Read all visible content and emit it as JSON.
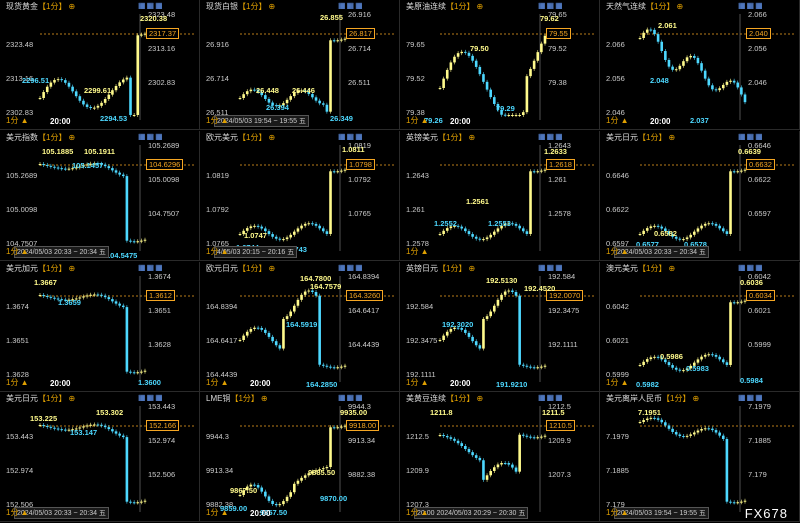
{
  "common": {
    "timeframe": "1分",
    "tf_tag": "【1分】",
    "gear": "⊕",
    "time_label": "20:00",
    "icons": "▦▦▦",
    "colors": {
      "up": "#fffa8c",
      "down": "#4dd8ff",
      "ref": "#f5a623"
    }
  },
  "watermark": "FX678",
  "panels": [
    {
      "name": "gold",
      "title": "现货黄金",
      "r": [
        2323.48,
        2313.16,
        2302.83
      ],
      "l": [
        2323.48,
        2313.16,
        2302.83
      ],
      "last": "2317.37",
      "ann": [
        {
          "t": "2320.38",
          "k": "hi",
          "x": 140,
          "y": 14
        },
        {
          "t": "2299.61",
          "k": "hi",
          "x": 84,
          "y": 86
        },
        {
          "t": "2296.51",
          "k": "lo",
          "x": 22,
          "y": 76
        },
        {
          "t": "2294.53",
          "k": "lo",
          "x": 100,
          "y": 114
        }
      ],
      "time": true,
      "ts": "",
      "series": "gold"
    },
    {
      "name": "silver",
      "title": "现货白银",
      "r": [
        26.916,
        26.714,
        26.511
      ],
      "l": [
        26.916,
        26.714,
        26.511
      ],
      "last": "26.817",
      "ann": [
        {
          "t": "26.855",
          "k": "hi",
          "x": 120,
          "y": 13
        },
        {
          "t": "26.448",
          "k": "hi",
          "x": 56,
          "y": 86
        },
        {
          "t": "26.446",
          "k": "hi",
          "x": 92,
          "y": 86
        },
        {
          "t": "26.394",
          "k": "lo",
          "x": 66,
          "y": 103
        },
        {
          "t": "26.349",
          "k": "lo",
          "x": 130,
          "y": 114
        }
      ],
      "time": false,
      "ts": "2024/05/03 19:54 ~ 19:55 五",
      "series": "flat"
    },
    {
      "name": "oil",
      "title": "美原油连续",
      "r": [
        79.65,
        79.52,
        79.38
      ],
      "l": [
        79.65,
        79.52,
        79.38
      ],
      "last": "79.55",
      "ann": [
        {
          "t": "79.62",
          "k": "hi",
          "x": 140,
          "y": 14
        },
        {
          "t": "79.50",
          "k": "hi",
          "x": 70,
          "y": 44
        },
        {
          "t": "79.29",
          "k": "lo",
          "x": 96,
          "y": 104
        },
        {
          "t": "79.26",
          "k": "lo",
          "x": 24,
          "y": 116
        }
      ],
      "time": true,
      "ts": "",
      "series": "oil"
    },
    {
      "name": "natgas",
      "title": "天然气连续",
      "r": [
        2.066,
        2.056,
        2.046
      ],
      "l": [
        2.066,
        2.056,
        2.046
      ],
      "last": "2.040",
      "ann": [
        {
          "t": "2.061",
          "k": "hi",
          "x": 58,
          "y": 21
        },
        {
          "t": "2.048",
          "k": "lo",
          "x": 50,
          "y": 76
        },
        {
          "t": "2.037",
          "k": "lo",
          "x": 90,
          "y": 116
        }
      ],
      "time": true,
      "ts": "",
      "series": "gas"
    },
    {
      "name": "dxy",
      "title": "美元指数",
      "r": [
        105.2689,
        105.0098,
        104.7507
      ],
      "l": [
        105.2689,
        105.0098,
        104.7507
      ],
      "last": "104.6296",
      "ann": [
        {
          "t": "105.1885",
          "k": "hi",
          "x": 42,
          "y": 16
        },
        {
          "t": "105.1911",
          "k": "hi",
          "x": 84,
          "y": 16
        },
        {
          "t": "105.1457",
          "k": "lo",
          "x": 72,
          "y": 30
        },
        {
          "t": "104.5475",
          "k": "lo",
          "x": 106,
          "y": 120
        }
      ],
      "time": false,
      "ts": "2024/05/03 20:33 ~ 20:34 五",
      "series": "dropDown"
    },
    {
      "name": "eurusd",
      "title": "欧元美元",
      "r": [
        1.0819,
        1.0792,
        1.0765
      ],
      "l": [
        1.0819,
        1.0792,
        1.0765
      ],
      "last": "1.0798",
      "ann": [
        {
          "t": "1.0811",
          "k": "hi",
          "x": 142,
          "y": 14
        },
        {
          "t": "1.0747",
          "k": "hi",
          "x": 44,
          "y": 100
        },
        {
          "t": "1.0744",
          "k": "lo",
          "x": 36,
          "y": 112
        },
        {
          "t": "1.0743",
          "k": "lo",
          "x": 84,
          "y": 114
        }
      ],
      "time": false,
      "ts": "4/05/03 20:15 ~ 20:16 五",
      "series": "jumpUp"
    },
    {
      "name": "gbpusd",
      "title": "英镑美元",
      "r": [
        1.2643,
        1.261,
        1.2578
      ],
      "l": [
        1.2643,
        1.261,
        1.2578
      ],
      "last": "1.2618",
      "ann": [
        {
          "t": "1.2633",
          "k": "hi",
          "x": 144,
          "y": 16
        },
        {
          "t": "1.2561",
          "k": "hi",
          "x": 66,
          "y": 66
        },
        {
          "t": "1.2552",
          "k": "lo",
          "x": 34,
          "y": 88
        },
        {
          "t": "1.2553",
          "k": "lo",
          "x": 88,
          "y": 88
        }
      ],
      "time": false,
      "ts": "",
      "series": "jumpUp"
    },
    {
      "name": "usdjpy",
      "title": "美元日元",
      "r": [
        0.6646,
        0.6622,
        0.6597
      ],
      "l": [
        0.6646,
        0.6622,
        0.6597
      ],
      "last": "0.6632",
      "ann": [
        {
          "t": "0.6639",
          "k": "hi",
          "x": 138,
          "y": 16
        },
        {
          "t": "0.6582",
          "k": "hi",
          "x": 54,
          "y": 98
        },
        {
          "t": "0.6577",
          "k": "lo",
          "x": 36,
          "y": 109
        },
        {
          "t": "0.6578",
          "k": "lo",
          "x": 84,
          "y": 109
        }
      ],
      "time": false,
      "ts": "2024/05/03 20:33 ~ 20:34 五",
      "series": "jumpUp"
    },
    {
      "name": "gbpusd2",
      "title": "美元加元",
      "r": [
        1.3674,
        1.3651,
        1.3628
      ],
      "l": [
        1.3674,
        1.3651,
        1.3628
      ],
      "last": "1.3612",
      "ann": [
        {
          "t": "1.3667",
          "k": "hi",
          "x": 34,
          "y": 16
        },
        {
          "t": "1.3659",
          "k": "lo",
          "x": 58,
          "y": 36
        },
        {
          "t": "1.3600",
          "k": "lo",
          "x": 138,
          "y": 116
        }
      ],
      "time": true,
      "ts": "",
      "series": "dropDown"
    },
    {
      "name": "eurjpy",
      "title": "欧元日元",
      "r": [
        164.8394,
        164.6417,
        164.4439
      ],
      "l": [
        164.8394,
        164.6417,
        164.4439
      ],
      "last": "164.3260",
      "ann": [
        {
          "t": "164.7800",
          "k": "hi",
          "x": 100,
          "y": 12
        },
        {
          "t": "164.7579",
          "k": "hi",
          "x": 110,
          "y": 20
        },
        {
          "t": "164.5919",
          "k": "lo",
          "x": 86,
          "y": 58
        },
        {
          "t": "164.2850",
          "k": "lo",
          "x": 106,
          "y": 118
        }
      ],
      "time": true,
      "ts": "",
      "series": "eurjpy"
    },
    {
      "name": "gbpjpy",
      "title": "英镑日元",
      "r": [
        192.584,
        192.3475,
        192.1111
      ],
      "l": [
        192.584,
        192.3475,
        192.1111
      ],
      "last": "192.0070",
      "ann": [
        {
          "t": "192.5130",
          "k": "hi",
          "x": 86,
          "y": 14
        },
        {
          "t": "192.4520",
          "k": "hi",
          "x": 124,
          "y": 22
        },
        {
          "t": "192.3020",
          "k": "lo",
          "x": 42,
          "y": 58
        },
        {
          "t": "191.9210",
          "k": "lo",
          "x": 96,
          "y": 118
        }
      ],
      "time": true,
      "ts": "",
      "series": "eurjpy"
    },
    {
      "name": "audusd",
      "title": "澳元美元",
      "r": [
        0.6042,
        0.6021,
        0.5999
      ],
      "l": [
        0.6042,
        0.6021,
        0.5999
      ],
      "last": "0.6034",
      "ann": [
        {
          "t": "0.6036",
          "k": "hi",
          "x": 140,
          "y": 16
        },
        {
          "t": "0.5986",
          "k": "hi",
          "x": 60,
          "y": 90
        },
        {
          "t": "0.5982",
          "k": "lo",
          "x": 36,
          "y": 118
        },
        {
          "t": "0.5983",
          "k": "lo",
          "x": 86,
          "y": 102
        },
        {
          "t": "0.5984",
          "k": "lo",
          "x": 140,
          "y": 114
        }
      ],
      "time": false,
      "ts": "",
      "series": "jumpUp"
    },
    {
      "name": "usdjpy2",
      "title": "美元日元",
      "r": [
        153.443,
        152.974,
        152.506
      ],
      "l": [
        153.443,
        152.974,
        152.506
      ],
      "last": "152.166",
      "ann": [
        {
          "t": "153.225",
          "k": "hi",
          "x": 30,
          "y": 22
        },
        {
          "t": "153.302",
          "k": "hi",
          "x": 96,
          "y": 16
        },
        {
          "t": "153.147",
          "k": "lo",
          "x": 70,
          "y": 36
        }
      ],
      "time": false,
      "ts": "2024/05/03 20:33 ~ 20:34 五",
      "series": "dropDown"
    },
    {
      "name": "lme",
      "title": "LME铜",
      "r": [
        9944.3,
        9913.34,
        9882.38
      ],
      "l": [
        9944.3,
        9913.34,
        9882.38
      ],
      "last": "9918.00",
      "ann": [
        {
          "t": "9935.00",
          "k": "hi",
          "x": 140,
          "y": 16
        },
        {
          "t": "9885.50",
          "k": "hi",
          "x": 108,
          "y": 76
        },
        {
          "t": "9867.50",
          "k": "hi",
          "x": 30,
          "y": 94
        },
        {
          "t": "9870.00",
          "k": "lo",
          "x": 120,
          "y": 102
        },
        {
          "t": "9859.00",
          "k": "lo",
          "x": 20,
          "y": 112
        },
        {
          "t": "9857.50",
          "k": "lo",
          "x": 60,
          "y": 116
        }
      ],
      "time": true,
      "ts": "",
      "series": "lme"
    },
    {
      "name": "soy",
      "title": "美黄豆连续",
      "r": [
        1212.5,
        1209.9,
        1207.3
      ],
      "l": [
        1212.5,
        1209.9,
        1207.3
      ],
      "last": "1210.5",
      "ann": [
        {
          "t": "1211.8",
          "k": "hi",
          "x": 30,
          "y": 16
        },
        {
          "t": "1211.5",
          "k": "hi",
          "x": 142,
          "y": 16
        }
      ],
      "time": false,
      "ts": "20:00   2024/05/03 20:29 ~ 20:30 五",
      "series": "soy"
    },
    {
      "name": "usdcnh",
      "title": "美元离岸人民币",
      "r": [
        7.1979,
        7.1885,
        7.179
      ],
      "l": [
        7.1979,
        7.1885,
        7.179
      ],
      "last": "",
      "ann": [
        {
          "t": "7.1951",
          "k": "hi",
          "x": 38,
          "y": 16
        }
      ],
      "time": false,
      "ts": "2024/05/03 19:54 ~ 19:55 五",
      "series": "cnh"
    }
  ]
}
